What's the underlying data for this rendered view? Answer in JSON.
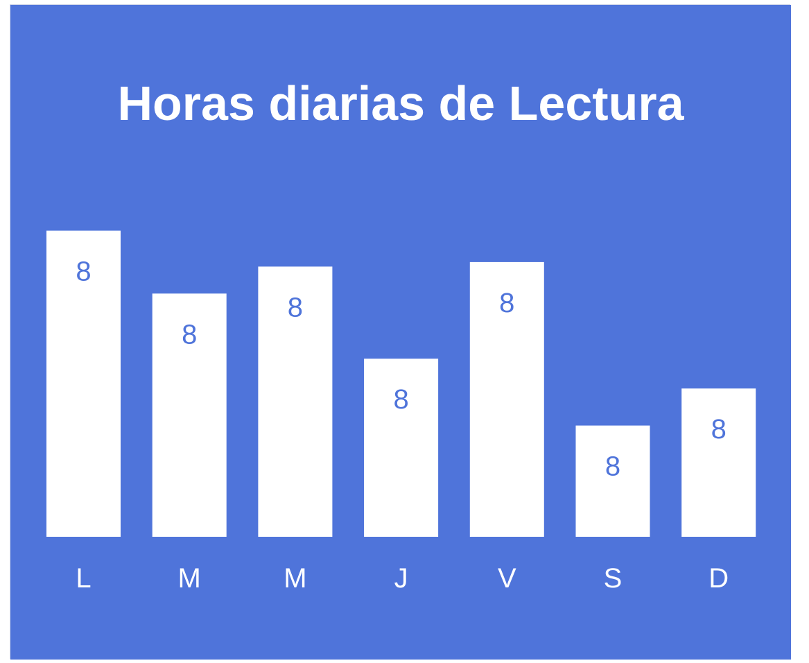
{
  "chart_data": {
    "type": "bar",
    "title": "Horas diarias de Lectura",
    "categories": [
      "L",
      "M",
      "M",
      "J",
      "V",
      "S",
      "D"
    ],
    "values": [
      5.45,
      4.33,
      4.81,
      3.17,
      4.89,
      1.98,
      2.64
    ],
    "data_labels": [
      "8",
      "8",
      "8",
      "8",
      "8",
      "8",
      "8"
    ],
    "xlabel": "",
    "ylabel": "",
    "ylim": [
      0,
      6
    ],
    "grid": false,
    "legend": "none",
    "colors": {
      "background": "#4F74DA",
      "bar": "#FFFFFF",
      "text": "#FFFFFF",
      "value_label": "#4F74DA"
    }
  }
}
